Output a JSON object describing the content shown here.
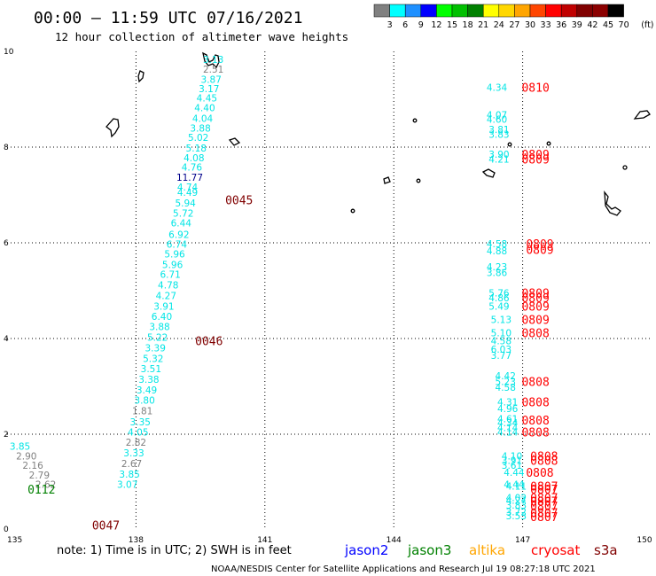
{
  "chart_data": {
    "type": "scatter",
    "title": "00:00 – 11:59 UTC 07/16/2021",
    "subtitle": "12 hour collection of altimeter wave heights",
    "xlabel": "",
    "ylabel": "",
    "xlim": [
      135,
      150
    ],
    "ylim": [
      0,
      10
    ],
    "x_ticks": [
      "135",
      "138",
      "141",
      "144",
      "147",
      "150"
    ],
    "y_ticks": [
      "0",
      "2",
      "4",
      "6",
      "8",
      "10"
    ],
    "grid": true,
    "colorbar": {
      "labels": [
        "3",
        "6",
        "9",
        "12",
        "15",
        "18",
        "21",
        "24",
        "27",
        "30",
        "33",
        "36",
        "39",
        "42",
        "45",
        "70",
        "(ft)"
      ],
      "colors": [
        "#808080",
        "#00ffff",
        "#1e90ff",
        "#0000ff",
        "#00ff00",
        "#00c000",
        "#008000",
        "#ffff00",
        "#ffd700",
        "#ffa500",
        "#ff4500",
        "#ff0000",
        "#c00000",
        "#800000",
        "#8b0000",
        "#000000"
      ]
    },
    "note": "note: 1) Time is in UTC; 2) SWH is in feet",
    "legend": [
      {
        "label": "jason2",
        "color": "#0000ff"
      },
      {
        "label": "jason3",
        "color": "#008000"
      },
      {
        "label": "altika",
        "color": "#ffa500"
      },
      {
        "label": "cryosat",
        "color": "#ff0000"
      },
      {
        "label": "s3a",
        "color": "#800000"
      }
    ],
    "footer": "NOAA/NESDIS Center for Satellite Applications and Research    Jul 19 08:27:18 UTC 2021",
    "color_key": {
      "gray": "#808080",
      "cyan": "#00e5e5",
      "blue": "#00008b",
      "green": "#008000",
      "red": "#ff0000",
      "maroon": "#800000"
    },
    "tracks": [
      {
        "name": "track-1",
        "points": [
          {
            "x": 139.8,
            "y": 9.83,
            "v": "3.13",
            "c": "cyan"
          },
          {
            "x": 139.8,
            "y": 9.63,
            "v": "2.51",
            "c": "gray"
          },
          {
            "x": 139.75,
            "y": 9.42,
            "v": "3.87",
            "c": "cyan"
          },
          {
            "x": 139.7,
            "y": 9.22,
            "v": "3.17",
            "c": "cyan"
          },
          {
            "x": 139.65,
            "y": 9.03,
            "v": "4.45",
            "c": "cyan"
          },
          {
            "x": 139.6,
            "y": 8.82,
            "v": "4.40",
            "c": "cyan"
          },
          {
            "x": 139.55,
            "y": 8.6,
            "v": "4.04",
            "c": "cyan"
          },
          {
            "x": 139.5,
            "y": 8.4,
            "v": "3.88",
            "c": "cyan"
          },
          {
            "x": 139.45,
            "y": 8.2,
            "v": "5.02",
            "c": "cyan"
          },
          {
            "x": 139.4,
            "y": 7.98,
            "v": "5.18",
            "c": "cyan"
          },
          {
            "x": 139.35,
            "y": 7.78,
            "v": "4.08",
            "c": "cyan"
          },
          {
            "x": 139.3,
            "y": 7.58,
            "v": "4.76",
            "c": "cyan"
          },
          {
            "x": 139.25,
            "y": 7.37,
            "v": "11.77",
            "c": "blue"
          },
          {
            "x": 139.2,
            "y": 7.17,
            "v": "4.74",
            "c": "cyan"
          },
          {
            "x": 139.2,
            "y": 7.06,
            "v": "4.49",
            "c": "cyan"
          },
          {
            "x": 139.15,
            "y": 6.83,
            "v": "5.94",
            "c": "cyan"
          },
          {
            "x": 139.1,
            "y": 6.62,
            "v": "5.72",
            "c": "cyan"
          },
          {
            "x": 139.05,
            "y": 6.42,
            "v": "6.44",
            "c": "cyan"
          },
          {
            "x": 139.0,
            "y": 6.18,
            "v": "6.92",
            "c": "cyan"
          },
          {
            "x": 138.95,
            "y": 5.97,
            "v": "6.74",
            "c": "cyan"
          },
          {
            "x": 138.9,
            "y": 5.77,
            "v": "5.96",
            "c": "cyan"
          },
          {
            "x": 138.85,
            "y": 5.55,
            "v": "5.96",
            "c": "cyan"
          },
          {
            "x": 138.8,
            "y": 5.34,
            "v": "6.71",
            "c": "cyan"
          },
          {
            "x": 138.75,
            "y": 5.12,
            "v": "4.78",
            "c": "cyan"
          },
          {
            "x": 138.7,
            "y": 4.9,
            "v": "4.27",
            "c": "cyan"
          },
          {
            "x": 138.65,
            "y": 4.68,
            "v": "3.91",
            "c": "cyan"
          },
          {
            "x": 138.6,
            "y": 4.46,
            "v": "6.40",
            "c": "cyan"
          },
          {
            "x": 138.55,
            "y": 4.25,
            "v": "3.88",
            "c": "cyan"
          },
          {
            "x": 138.5,
            "y": 4.03,
            "v": "5.22",
            "c": "cyan"
          },
          {
            "x": 138.45,
            "y": 3.81,
            "v": "3.39",
            "c": "cyan"
          },
          {
            "x": 138.4,
            "y": 3.58,
            "v": "5.32",
            "c": "cyan"
          },
          {
            "x": 138.35,
            "y": 3.37,
            "v": "3.51",
            "c": "cyan"
          },
          {
            "x": 138.3,
            "y": 3.15,
            "v": "3.38",
            "c": "cyan"
          },
          {
            "x": 138.25,
            "y": 2.93,
            "v": "3.49",
            "c": "cyan"
          },
          {
            "x": 138.2,
            "y": 2.71,
            "v": "3.80",
            "c": "cyan"
          },
          {
            "x": 138.15,
            "y": 2.49,
            "v": "1.81",
            "c": "gray"
          },
          {
            "x": 138.1,
            "y": 2.26,
            "v": "3.35",
            "c": "cyan"
          },
          {
            "x": 138.05,
            "y": 2.05,
            "v": "4.05",
            "c": "cyan"
          },
          {
            "x": 138.0,
            "y": 1.83,
            "v": "2.82",
            "c": "gray"
          },
          {
            "x": 137.95,
            "y": 1.61,
            "v": "3.33",
            "c": "cyan"
          },
          {
            "x": 137.9,
            "y": 1.39,
            "v": "2.67",
            "c": "gray"
          },
          {
            "x": 137.85,
            "y": 1.17,
            "v": "3.85",
            "c": "cyan"
          },
          {
            "x": 137.8,
            "y": 0.95,
            "v": "3.07",
            "c": "cyan"
          }
        ]
      },
      {
        "name": "track-2",
        "points": [
          {
            "x": 135.3,
            "y": 1.75,
            "v": "3.85",
            "c": "cyan"
          },
          {
            "x": 135.45,
            "y": 1.55,
            "v": "2.90",
            "c": "gray"
          },
          {
            "x": 135.6,
            "y": 1.35,
            "v": "2.16",
            "c": "gray"
          },
          {
            "x": 135.75,
            "y": 1.15,
            "v": "2.79",
            "c": "gray"
          },
          {
            "x": 135.9,
            "y": 0.95,
            "v": "2.62",
            "c": "gray"
          }
        ]
      },
      {
        "name": "track-3",
        "points": [
          {
            "x": 146.4,
            "y": 9.25,
            "v": "4.34",
            "c": "cyan"
          },
          {
            "x": 146.4,
            "y": 8.68,
            "v": "4.07",
            "c": "cyan"
          },
          {
            "x": 146.4,
            "y": 8.58,
            "v": "4.60",
            "c": "cyan"
          },
          {
            "x": 146.45,
            "y": 8.37,
            "v": "3.81",
            "c": "cyan"
          },
          {
            "x": 146.45,
            "y": 8.27,
            "v": "3.83",
            "c": "cyan"
          },
          {
            "x": 146.45,
            "y": 7.85,
            "v": "3.90",
            "c": "cyan"
          },
          {
            "x": 146.45,
            "y": 7.75,
            "v": "4.21",
            "c": "cyan"
          },
          {
            "x": 146.4,
            "y": 5.98,
            "v": "4.58",
            "c": "cyan"
          },
          {
            "x": 146.4,
            "y": 5.83,
            "v": "4.88",
            "c": "cyan"
          },
          {
            "x": 146.4,
            "y": 5.5,
            "v": "4.23",
            "c": "cyan"
          },
          {
            "x": 146.4,
            "y": 5.38,
            "v": "3.86",
            "c": "cyan"
          },
          {
            "x": 146.45,
            "y": 4.95,
            "v": "5.76",
            "c": "cyan"
          },
          {
            "x": 146.45,
            "y": 4.85,
            "v": "4.86",
            "c": "cyan"
          },
          {
            "x": 146.45,
            "y": 4.68,
            "v": "5.49",
            "c": "cyan"
          },
          {
            "x": 146.5,
            "y": 4.4,
            "v": "5.13",
            "c": "cyan"
          },
          {
            "x": 146.5,
            "y": 4.12,
            "v": "5.10",
            "c": "cyan"
          },
          {
            "x": 146.5,
            "y": 3.95,
            "v": "4.58",
            "c": "cyan"
          },
          {
            "x": 146.5,
            "y": 3.78,
            "v": "6.03",
            "c": "cyan"
          },
          {
            "x": 146.5,
            "y": 3.65,
            "v": "3.77",
            "c": "cyan"
          },
          {
            "x": 146.6,
            "y": 3.22,
            "v": "4.42",
            "c": "cyan"
          },
          {
            "x": 146.6,
            "y": 3.1,
            "v": "5.23",
            "c": "cyan"
          },
          {
            "x": 146.6,
            "y": 2.98,
            "v": "4.58",
            "c": "cyan"
          },
          {
            "x": 146.65,
            "y": 2.68,
            "v": "4.31",
            "c": "cyan"
          },
          {
            "x": 146.65,
            "y": 2.54,
            "v": "4.96",
            "c": "cyan"
          },
          {
            "x": 146.65,
            "y": 2.32,
            "v": "4.61",
            "c": "cyan"
          },
          {
            "x": 146.65,
            "y": 2.24,
            "v": "4.34",
            "c": "cyan"
          },
          {
            "x": 146.65,
            "y": 2.14,
            "v": "4.14",
            "c": "cyan"
          },
          {
            "x": 146.65,
            "y": 2.05,
            "v": "4.14",
            "c": "cyan"
          },
          {
            "x": 146.75,
            "y": 1.55,
            "v": "4.10",
            "c": "cyan"
          },
          {
            "x": 146.75,
            "y": 1.45,
            "v": "3.91",
            "c": "cyan"
          },
          {
            "x": 146.75,
            "y": 1.35,
            "v": "3.61",
            "c": "cyan"
          },
          {
            "x": 146.8,
            "y": 1.2,
            "v": "4.44",
            "c": "cyan"
          },
          {
            "x": 146.8,
            "y": 0.95,
            "v": "4.44",
            "c": "cyan"
          },
          {
            "x": 146.85,
            "y": 0.92,
            "v": "4.11",
            "c": "cyan"
          },
          {
            "x": 146.85,
            "y": 0.68,
            "v": "4.02",
            "c": "cyan"
          },
          {
            "x": 146.85,
            "y": 0.62,
            "v": "4.27",
            "c": "cyan"
          },
          {
            "x": 146.85,
            "y": 0.52,
            "v": "3.83",
            "c": "cyan"
          },
          {
            "x": 146.85,
            "y": 0.38,
            "v": "3.72",
            "c": "cyan"
          },
          {
            "x": 146.85,
            "y": 0.3,
            "v": "3.53",
            "c": "cyan"
          }
        ]
      }
    ],
    "time_labels": [
      {
        "x": 140.4,
        "y": 6.9,
        "v": "0045",
        "c": "maroon"
      },
      {
        "x": 139.7,
        "y": 3.95,
        "v": "0046",
        "c": "maroon"
      },
      {
        "x": 137.3,
        "y": 0.1,
        "v": "0047",
        "c": "maroon"
      },
      {
        "x": 135.8,
        "y": 0.85,
        "v": "0112",
        "c": "green"
      },
      {
        "x": 147.3,
        "y": 9.25,
        "v": "0810",
        "c": "red"
      },
      {
        "x": 147.3,
        "y": 7.85,
        "v": "0809",
        "c": "red"
      },
      {
        "x": 147.3,
        "y": 7.75,
        "v": "0809",
        "c": "red"
      },
      {
        "x": 147.4,
        "y": 5.98,
        "v": "0809",
        "c": "red"
      },
      {
        "x": 147.4,
        "y": 5.86,
        "v": "0809",
        "c": "red"
      },
      {
        "x": 147.3,
        "y": 4.95,
        "v": "0809",
        "c": "red"
      },
      {
        "x": 147.3,
        "y": 4.85,
        "v": "0809",
        "c": "red"
      },
      {
        "x": 147.3,
        "y": 4.68,
        "v": "0809",
        "c": "red"
      },
      {
        "x": 147.3,
        "y": 4.4,
        "v": "0809",
        "c": "red"
      },
      {
        "x": 147.3,
        "y": 4.12,
        "v": "0808",
        "c": "red"
      },
      {
        "x": 147.3,
        "y": 3.1,
        "v": "0808",
        "c": "red"
      },
      {
        "x": 147.3,
        "y": 2.68,
        "v": "0808",
        "c": "red"
      },
      {
        "x": 147.3,
        "y": 2.3,
        "v": "0808",
        "c": "red"
      },
      {
        "x": 147.3,
        "y": 2.05,
        "v": "0808",
        "c": "red"
      },
      {
        "x": 147.5,
        "y": 1.55,
        "v": "0808",
        "c": "red"
      },
      {
        "x": 147.5,
        "y": 1.45,
        "v": "0808",
        "c": "red"
      },
      {
        "x": 147.4,
        "y": 1.2,
        "v": "0808",
        "c": "red"
      },
      {
        "x": 147.5,
        "y": 0.92,
        "v": "0807",
        "c": "red"
      },
      {
        "x": 147.5,
        "y": 0.85,
        "v": "0807",
        "c": "red"
      },
      {
        "x": 147.5,
        "y": 0.68,
        "v": "0807",
        "c": "red"
      },
      {
        "x": 147.5,
        "y": 0.6,
        "v": "0807",
        "c": "red"
      },
      {
        "x": 147.5,
        "y": 0.5,
        "v": "0807",
        "c": "red"
      },
      {
        "x": 147.5,
        "y": 0.36,
        "v": "0807",
        "c": "red"
      },
      {
        "x": 147.5,
        "y": 0.28,
        "v": "0807",
        "c": "red"
      }
    ]
  }
}
